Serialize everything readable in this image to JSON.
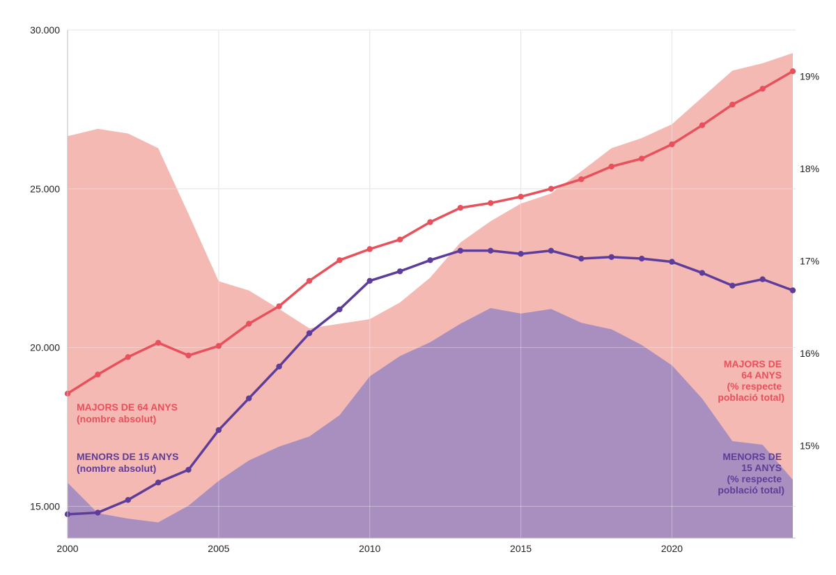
{
  "chart_data": {
    "type": "area+line",
    "x": [
      2000,
      2001,
      2002,
      2003,
      2004,
      2005,
      2006,
      2007,
      2008,
      2009,
      2010,
      2011,
      2012,
      2013,
      2014,
      2015,
      2016,
      2017,
      2018,
      2019,
      2020,
      2021,
      2022,
      2023,
      2024
    ],
    "x_ticks": [
      "2000",
      "2005",
      "2010",
      "2015",
      "2020"
    ],
    "y_left": {
      "range": [
        14000,
        30000
      ],
      "ticks": [
        "15.000",
        "20.000",
        "25.000",
        "30.000"
      ],
      "tick_values": [
        15000,
        20000,
        25000,
        30000
      ]
    },
    "y_right": {
      "range": [
        14.0,
        19.5
      ],
      "ticks": [
        "15%",
        "16%",
        "17%",
        "18%",
        "19%"
      ],
      "tick_values": [
        15,
        16,
        17,
        18,
        19
      ]
    },
    "grid": true,
    "series": [
      {
        "name": "MAJORS DE 64 ANYS (% respecte població total)",
        "kind": "area",
        "axis": "right",
        "color": "#f5b9b4",
        "values": [
          18.35,
          18.43,
          18.38,
          18.22,
          17.51,
          16.78,
          16.68,
          16.48,
          16.27,
          16.32,
          16.37,
          16.55,
          16.82,
          17.2,
          17.43,
          17.62,
          17.73,
          17.97,
          18.22,
          18.33,
          18.48,
          18.77,
          19.06,
          19.14,
          19.25
        ]
      },
      {
        "name": "MENORS DE 15 ANYS (% respecte població total)",
        "kind": "area",
        "axis": "right",
        "color": "#a88fbf",
        "values": [
          14.6,
          14.27,
          14.21,
          14.17,
          14.35,
          14.62,
          14.84,
          14.99,
          15.1,
          15.33,
          15.75,
          15.97,
          16.12,
          16.32,
          16.49,
          16.43,
          16.48,
          16.33,
          16.26,
          16.09,
          15.87,
          15.51,
          15.05,
          15.01,
          14.63
        ]
      },
      {
        "name": "MAJORS DE 64 ANYS (nombre absolut)",
        "kind": "line",
        "axis": "left",
        "color": "#e8505b",
        "values": [
          18550,
          19150,
          19700,
          20150,
          19750,
          20050,
          20750,
          21300,
          22100,
          22750,
          23100,
          23400,
          23950,
          24400,
          24550,
          24750,
          25000,
          25300,
          25700,
          25950,
          26400,
          27000,
          27650,
          28150,
          28700
        ]
      },
      {
        "name": "MENORS DE 15 ANYS (nombre absolut)",
        "kind": "line",
        "axis": "left",
        "color": "#5e3c99",
        "values": [
          14750,
          14800,
          15200,
          15750,
          16150,
          17400,
          18400,
          19400,
          20450,
          21200,
          22100,
          22400,
          22750,
          23050,
          23050,
          22950,
          23050,
          22800,
          22850,
          22800,
          22700,
          22350,
          21950,
          22150,
          21800
        ]
      }
    ],
    "annotations": {
      "majors_abs": [
        "MAJORS DE 64 ANYS",
        "(nombre absolut)"
      ],
      "menors_abs": [
        "MENORS DE 15 ANYS",
        "(nombre absolut)"
      ],
      "majors_pct": [
        "MAJORS DE",
        "64 ANYS",
        "(% respecte",
        "població total)"
      ],
      "menors_pct": [
        "MENORS DE",
        "15 ANYS",
        "(% respecte",
        "població total)"
      ]
    },
    "title": "",
    "xlabel": "",
    "ylabel": ""
  }
}
